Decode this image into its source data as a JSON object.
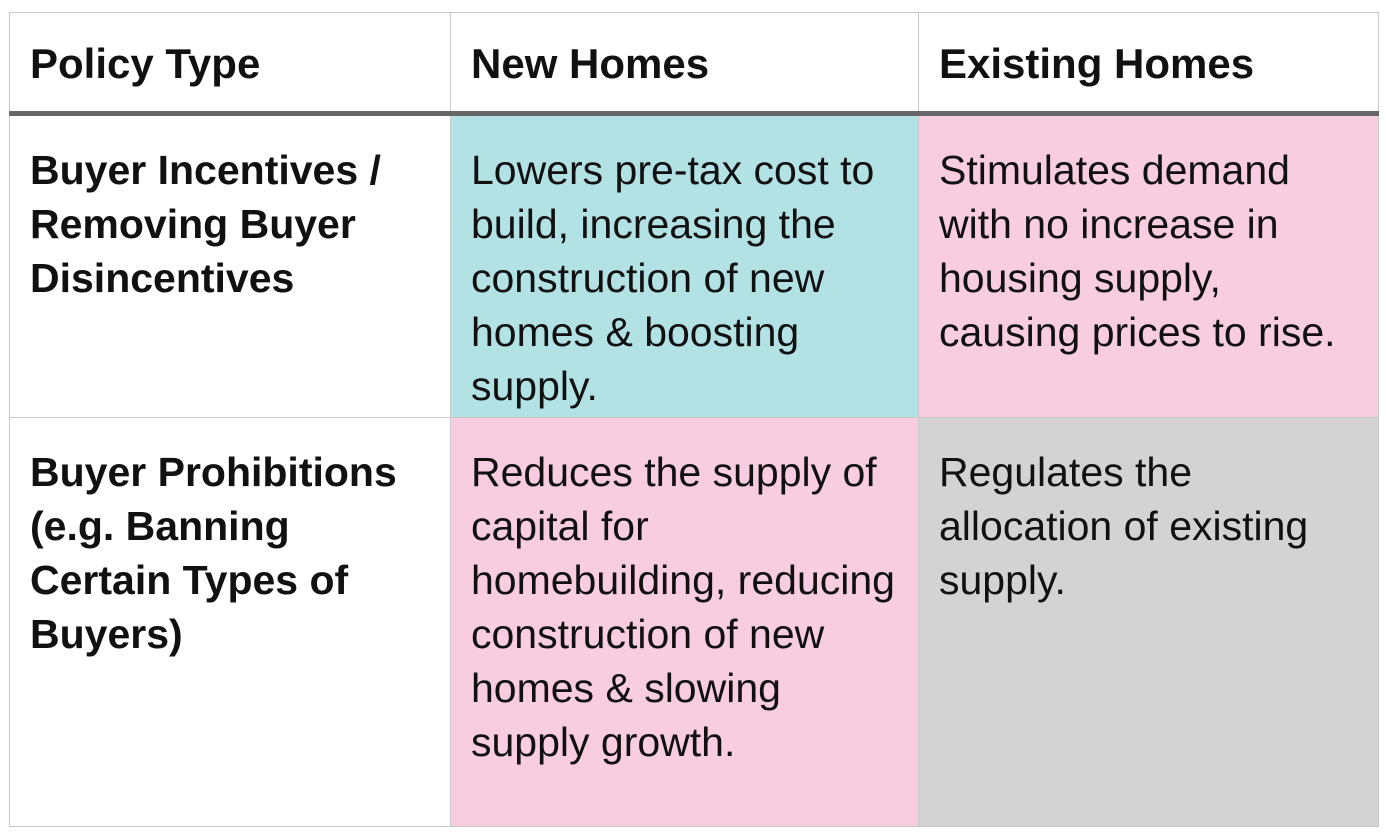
{
  "table": {
    "headers": [
      "Policy Type",
      "New Homes",
      "Existing Homes"
    ],
    "rows": [
      {
        "policy_type": "Buyer Incentives / Removing Buyer Disincentives",
        "new_homes": "Lowers pre-tax cost to build, increasing the construction of new homes & boosting supply.",
        "existing_homes": "Stimulates demand with no increase in housing supply, causing prices to rise."
      },
      {
        "policy_type": "Buyer Prohibitions (e.g. Banning Certain Types of Buyers)",
        "new_homes": "Reduces the supply of capital for homebuilding, reducing construction of new homes & slowing supply growth.",
        "existing_homes": "Regulates the allocation of existing supply."
      }
    ],
    "cell_colors": {
      "positive": "#b3e2e5",
      "negative": "#f8cde0",
      "neutral": "#d3d3d3"
    }
  }
}
